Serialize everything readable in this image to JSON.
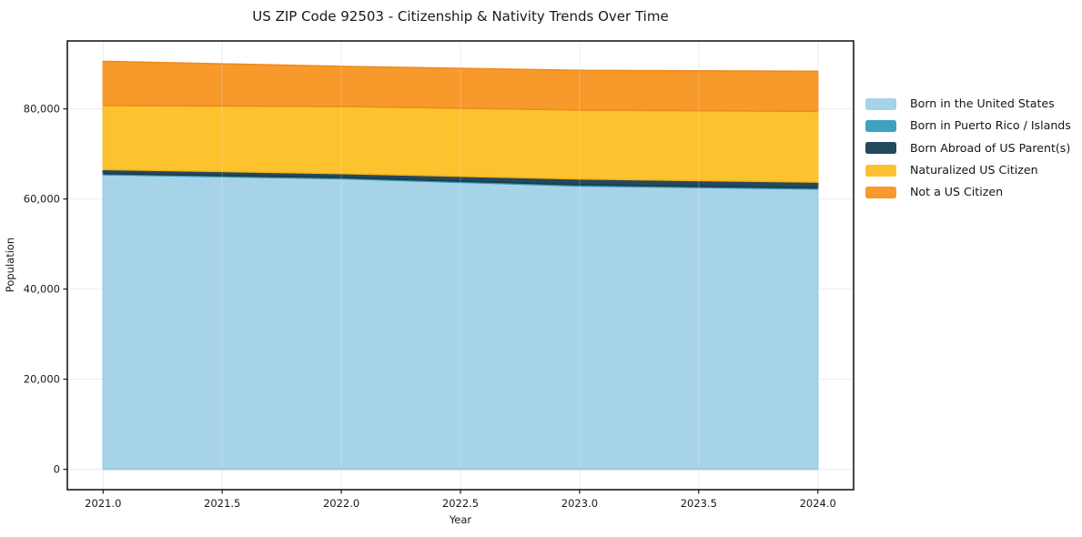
{
  "chart_data": {
    "type": "area",
    "stacked": true,
    "title": "US ZIP Code 92503 - Citizenship & Nativity Trends Over Time",
    "xlabel": "Year",
    "ylabel": "Population",
    "x": [
      2021,
      2022,
      2023,
      2024
    ],
    "series": [
      {
        "name": "Born in the United States",
        "color": "#A7D3E8",
        "edge": "#90C4DD",
        "values": [
          65400,
          64500,
          62900,
          62200
        ]
      },
      {
        "name": "Born in Puerto Rico / Islands",
        "color": "#3DA2C2",
        "edge": "#3593B2",
        "values": [
          250,
          250,
          250,
          250
        ]
      },
      {
        "name": "Born Abroad of US Parent(s)",
        "color": "#24485C",
        "edge": "#1C3A4B",
        "values": [
          900,
          900,
          1300,
          1300
        ]
      },
      {
        "name": "Naturalized US Citizen",
        "color": "#FDC32E",
        "edge": "#F3B419",
        "values": [
          14200,
          14900,
          15300,
          15700
        ]
      },
      {
        "name": "Not a US Citizen",
        "color": "#F89A2B",
        "edge": "#EE8A1E",
        "values": [
          9800,
          8900,
          8800,
          8900
        ]
      }
    ],
    "x_ticks": [
      {
        "v": 2021.0,
        "label": "2021.0"
      },
      {
        "v": 2021.5,
        "label": "2021.5"
      },
      {
        "v": 2022.0,
        "label": "2022.0"
      },
      {
        "v": 2022.5,
        "label": "2022.5"
      },
      {
        "v": 2023.0,
        "label": "2023.0"
      },
      {
        "v": 2023.5,
        "label": "2023.5"
      },
      {
        "v": 2024.0,
        "label": "2024.0"
      }
    ],
    "y_ticks": [
      {
        "v": 0,
        "label": "0"
      },
      {
        "v": 20000,
        "label": "20,000"
      },
      {
        "v": 40000,
        "label": "40,000"
      },
      {
        "v": 60000,
        "label": "60,000"
      },
      {
        "v": 80000,
        "label": "80,000"
      }
    ],
    "xlim": [
      2020.85,
      2024.15
    ],
    "ylim": [
      -4527,
      95077
    ],
    "grid": true,
    "legend_position": "right-outside",
    "colors": {
      "background": "#ffffff",
      "frame": "#1a1a1a",
      "grid": "#ebebeb",
      "grid_over_area": "rgba(255,255,255,0.22)",
      "text": "#1a1a1a"
    }
  }
}
